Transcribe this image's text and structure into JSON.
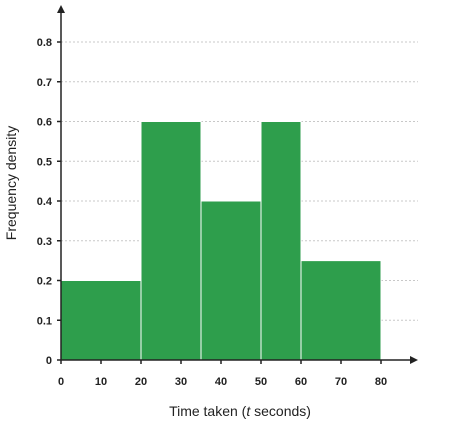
{
  "chart_data": {
    "type": "bar",
    "subtype": "histogram",
    "title": "",
    "xlabel_parts": [
      "Time taken (",
      "t",
      " seconds)"
    ],
    "ylabel": "Frequency density",
    "xlim": [
      0,
      80
    ],
    "ylim": [
      0,
      0.8
    ],
    "x_ticks": [
      0,
      10,
      20,
      30,
      40,
      50,
      60,
      70,
      80
    ],
    "y_ticks": [
      0,
      0.1,
      0.2,
      0.3,
      0.4,
      0.5,
      0.6,
      0.7,
      0.8
    ],
    "y_tick_labels": [
      "0",
      "0.1",
      "0.2",
      "0.3",
      "0.4",
      "0.5",
      "0.6",
      "0.7",
      "0.8"
    ],
    "grid": true,
    "bins": [
      {
        "x_start": 0,
        "x_end": 20,
        "value": 0.2
      },
      {
        "x_start": 20,
        "x_end": 35,
        "value": 0.6
      },
      {
        "x_start": 35,
        "x_end": 50,
        "value": 0.4
      },
      {
        "x_start": 50,
        "x_end": 60,
        "value": 0.6
      },
      {
        "x_start": 60,
        "x_end": 80,
        "value": 0.25
      }
    ],
    "colors": {
      "bar": "#2e9e4c",
      "bar_edge": "#ffffff",
      "grid": "#c8c8c8",
      "axis": "#222222"
    }
  }
}
